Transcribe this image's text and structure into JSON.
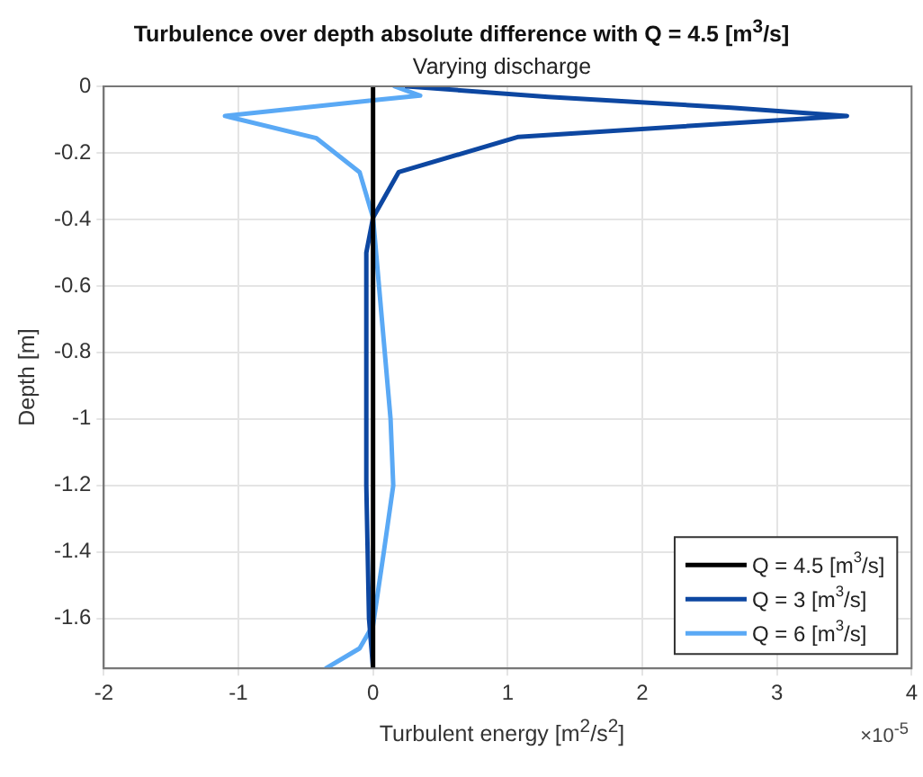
{
  "chart_data": {
    "type": "line",
    "title": "Turbulence over depth absolute difference with Q = 4.5 [m$^{3}$/s]",
    "subtitle": "Varying discharge",
    "xlabel": "Turbulent energy [m$^{2}$/s$^{2}$]",
    "ylabel": "Depth [m]",
    "annotations": [
      "×10$^{-5}$"
    ],
    "xlim": [
      -2,
      4
    ],
    "xticks": [
      -2,
      -1,
      0,
      1,
      2,
      3,
      4
    ],
    "ylim": [
      -1.75,
      0
    ],
    "yticks": [
      0,
      -0.2,
      -0.4,
      -0.6,
      -0.8,
      -1,
      -1.2,
      -1.4,
      -1.6
    ],
    "grid": true,
    "legend": "bottom right",
    "marker": "none",
    "line_style": "solid",
    "series": [
      {
        "name": "Q = 4.5 [m$^{3}$/s]",
        "color": "#000000",
        "x": [
          0,
          0
        ],
        "values": [
          0,
          -1.75
        ]
      },
      {
        "name": "Q = 3 [m$^{3}$/s]",
        "color": "#0d47a1",
        "x": [
          0.25,
          1.3,
          2.66,
          3.52,
          1.08,
          0.19,
          0,
          -0.05,
          -0.05,
          -0.03,
          0
        ],
        "values": [
          0,
          -0.032,
          -0.064,
          -0.089,
          -0.152,
          -0.258,
          -0.395,
          -0.5,
          -1.2,
          -1.6,
          -1.75
        ]
      },
      {
        "name": "Q = 6 [m$^{3}$/s]",
        "color": "#5aa9f5",
        "x": [
          0.16,
          0.35,
          0.05,
          -1.1,
          -0.42,
          -0.1,
          0,
          0.13,
          0.15,
          0.08,
          0,
          -0.1,
          -0.35
        ],
        "values": [
          0,
          -0.028,
          -0.04,
          -0.089,
          -0.156,
          -0.258,
          -0.395,
          -1.0,
          -1.2,
          -1.4,
          -1.62,
          -1.69,
          -1.75
        ]
      }
    ]
  }
}
